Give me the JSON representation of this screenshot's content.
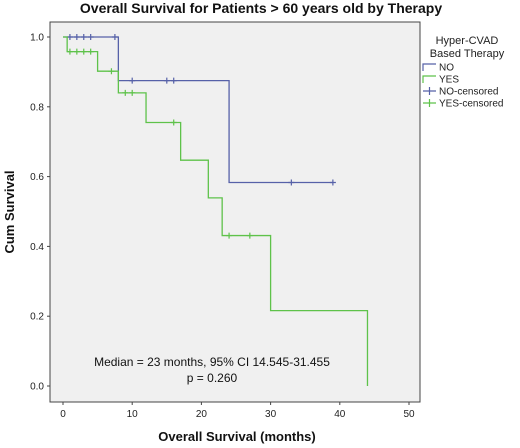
{
  "chart_data": {
    "type": "line",
    "title": "Overall Survival for Patients > 60 years old by Therapy",
    "xlabel": "Overall Survival (months)",
    "ylabel": "Cum Survival",
    "xlim": [
      0,
      50
    ],
    "ylim": [
      0,
      1.0
    ],
    "x_ticks": [
      "0",
      "10",
      "20",
      "30",
      "40",
      "50"
    ],
    "y_ticks": [
      "0.0",
      "0.2",
      "0.4",
      "0.6",
      "0.8",
      "1.0"
    ],
    "grid": false,
    "legend": {
      "title_line1": "Hyper-CVAD",
      "title_line2": "Based Therapy",
      "placement": "right-outside",
      "entries": [
        "NO",
        "YES",
        "NO-censored",
        "YES-censored"
      ]
    },
    "colors": {
      "NO": "#5661a8",
      "YES": "#5ec24a",
      "plot_bg": "#f0f0f0",
      "axes": "#444444"
    },
    "series": [
      {
        "name": "NO",
        "steps": [
          [
            0,
            1.0
          ],
          [
            8,
            0.875
          ],
          [
            24,
            0.583
          ],
          [
            39,
            0.583
          ]
        ],
        "censored": [
          [
            1,
            1.0
          ],
          [
            2,
            1.0
          ],
          [
            3,
            1.0
          ],
          [
            4,
            1.0
          ],
          [
            7.5,
            1.0
          ],
          [
            10,
            0.875
          ],
          [
            15,
            0.875
          ],
          [
            16,
            0.875
          ],
          [
            33,
            0.583
          ],
          [
            39,
            0.583
          ]
        ]
      },
      {
        "name": "YES",
        "steps": [
          [
            0,
            1.0
          ],
          [
            0.6,
            0.958
          ],
          [
            5,
            0.902
          ],
          [
            8,
            0.84
          ],
          [
            12,
            0.755
          ],
          [
            17,
            0.647
          ],
          [
            21,
            0.539
          ],
          [
            23,
            0.431
          ],
          [
            30,
            0.216
          ],
          [
            44,
            0.0
          ]
        ],
        "censored": [
          [
            1,
            0.958
          ],
          [
            2,
            0.958
          ],
          [
            3,
            0.958
          ],
          [
            4,
            0.958
          ],
          [
            7,
            0.902
          ],
          [
            9,
            0.84
          ],
          [
            10,
            0.84
          ],
          [
            16,
            0.755
          ],
          [
            24,
            0.431
          ],
          [
            27,
            0.431
          ]
        ]
      }
    ],
    "annotation_line1": "Median = 23 months, 95% CI 14.545-31.455",
    "annotation_line2": "p = 0.260"
  }
}
